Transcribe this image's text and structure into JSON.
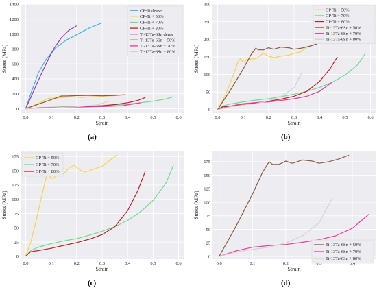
{
  "panel_labels": [
    "(a)",
    "(b)",
    "(c)",
    "(d)"
  ],
  "chart_data": [
    {
      "type": "line",
      "xlabel": "Strain",
      "ylabel": "Stress (MPa)",
      "xlim": [
        -0.02,
        0.62
      ],
      "ylim": [
        -60,
        1400
      ],
      "xticks": [
        0.0,
        0.1,
        0.2,
        0.3,
        0.4,
        0.5,
        0.6
      ],
      "yticks": [
        0,
        200,
        400,
        600,
        800,
        1000,
        1200,
        1400
      ],
      "legend_position": "top-right",
      "series": [
        {
          "name": "CP-Ti dense",
          "color": "#35b6e6",
          "x": [
            0,
            0.02,
            0.05,
            0.08,
            0.12,
            0.16,
            0.2,
            0.25,
            0.3
          ],
          "y": [
            0,
            200,
            480,
            660,
            820,
            920,
            990,
            1080,
            1150
          ]
        },
        {
          "name": "CP-Ti + 50%",
          "color": "#f5d547",
          "x": [
            0,
            0.05,
            0.09,
            0.12,
            0.18,
            0.22,
            0.26,
            0.3,
            0.35
          ],
          "y": [
            0,
            70,
            140,
            140,
            160,
            150,
            160,
            165,
            175
          ]
        },
        {
          "name": "CP-Ti + 70%",
          "color": "#6edc8c",
          "x": [
            0,
            0.1,
            0.2,
            0.3,
            0.4,
            0.45,
            0.5,
            0.55,
            0.58
          ],
          "y": [
            0,
            20,
            30,
            40,
            60,
            80,
            100,
            130,
            160
          ]
        },
        {
          "name": "CP-Ti + 80%",
          "color": "#c01e27",
          "x": [
            0,
            0.05,
            0.1,
            0.15,
            0.2,
            0.25,
            0.3,
            0.35,
            0.4,
            0.44,
            0.47
          ],
          "y": [
            0,
            10,
            15,
            20,
            25,
            30,
            40,
            55,
            80,
            110,
            150
          ]
        },
        {
          "name": "Ti-13Ta-6Sn dense",
          "color": "#a334b8",
          "x": [
            0,
            0.02,
            0.05,
            0.08,
            0.11,
            0.14,
            0.17,
            0.2
          ],
          "y": [
            0,
            150,
            380,
            600,
            800,
            950,
            1050,
            1110
          ]
        },
        {
          "name": "Ti-13Ta-6Sn + 50%",
          "color": "#8b5a3c",
          "x": [
            0,
            0.05,
            0.1,
            0.14,
            0.16,
            0.2,
            0.25,
            0.3,
            0.35,
            0.39
          ],
          "y": [
            0,
            60,
            120,
            170,
            170,
            175,
            178,
            172,
            178,
            187
          ]
        },
        {
          "name": "Ti-13Ta-6Sn + 70%",
          "color": "#f0399c",
          "x": [
            0,
            0.1,
            0.2,
            0.3,
            0.38,
            0.45
          ],
          "y": [
            0,
            15,
            22,
            28,
            40,
            78
          ]
        },
        {
          "name": "Ti-13Ta-6Sn + 80%",
          "color": "#d3d3d3",
          "x": [
            0,
            0.1,
            0.2,
            0.28,
            0.33
          ],
          "y": [
            0,
            12,
            25,
            50,
            105
          ]
        }
      ]
    },
    {
      "type": "line",
      "xlabel": "Strain",
      "ylabel": "Stress (MPa)",
      "xlim": [
        -0.02,
        0.62
      ],
      "ylim": [
        -10,
        300
      ],
      "xticks": [
        0.0,
        0.1,
        0.2,
        0.3,
        0.4,
        0.5,
        0.6
      ],
      "yticks": [
        0,
        50,
        100,
        150,
        200,
        250,
        300
      ],
      "legend_position": "top-right",
      "series": [
        {
          "name": "CP-Ti + 50%",
          "color": "#f5d547",
          "x": [
            0,
            0.03,
            0.06,
            0.08,
            0.09,
            0.1,
            0.12,
            0.15,
            0.18,
            0.2,
            0.22,
            0.25,
            0.28,
            0.3,
            0.33,
            0.35
          ],
          "y": [
            0,
            40,
            95,
            135,
            146,
            135,
            143,
            145,
            160,
            152,
            148,
            152,
            155,
            160,
            165,
            178
          ]
        },
        {
          "name": "CP-Ti + 70%",
          "color": "#6edc8c",
          "x": [
            0,
            0.02,
            0.05,
            0.1,
            0.15,
            0.2,
            0.25,
            0.3,
            0.35,
            0.4,
            0.45,
            0.5,
            0.55,
            0.58
          ],
          "y": [
            0,
            10,
            16,
            22,
            27,
            31,
            37,
            44,
            52,
            63,
            78,
            98,
            128,
            160
          ]
        },
        {
          "name": "CP-Ti + 80%",
          "color": "#c01e27",
          "x": [
            0,
            0.02,
            0.05,
            0.1,
            0.15,
            0.2,
            0.25,
            0.3,
            0.35,
            0.4,
            0.44,
            0.47
          ],
          "y": [
            0,
            8,
            10,
            14,
            19,
            24,
            30,
            38,
            52,
            80,
            115,
            150
          ]
        },
        {
          "name": "Ti-13Ta-6Sn + 50%",
          "color": "#8b5a3c",
          "x": [
            0,
            0.05,
            0.1,
            0.13,
            0.15,
            0.16,
            0.18,
            0.2,
            0.22,
            0.25,
            0.28,
            0.3,
            0.33,
            0.36,
            0.39
          ],
          "y": [
            0,
            55,
            115,
            155,
            175,
            170,
            170,
            176,
            172,
            178,
            176,
            172,
            175,
            180,
            187
          ]
        },
        {
          "name": "Ti-13Ta-6Sn + 70%",
          "color": "#f0399c",
          "x": [
            0,
            0.05,
            0.1,
            0.15,
            0.2,
            0.25,
            0.3,
            0.35,
            0.4,
            0.45
          ],
          "y": [
            0,
            10,
            17,
            20,
            22,
            26,
            31,
            38,
            52,
            78
          ]
        },
        {
          "name": "Ti-13Ta-6Sn + 80%",
          "color": "#d3d3d3",
          "x": [
            0,
            0.05,
            0.1,
            0.15,
            0.2,
            0.25,
            0.3,
            0.33
          ],
          "y": [
            0,
            8,
            13,
            17,
            25,
            38,
            62,
            105
          ]
        }
      ]
    },
    {
      "type": "line",
      "xlabel": "Strain",
      "ylabel": "Stress (MPa)",
      "xlim": [
        -0.02,
        0.62
      ],
      "ylim": [
        -5,
        185
      ],
      "xticks": [
        0.0,
        0.1,
        0.2,
        0.3,
        0.4,
        0.5,
        0.6
      ],
      "yticks": [
        0,
        25,
        50,
        75,
        100,
        125,
        150,
        175
      ],
      "legend_position": "top-left",
      "series": [
        {
          "name": "CP-Ti + 50%",
          "color": "#f5d547",
          "x": [
            0,
            0.02,
            0.04,
            0.06,
            0.08,
            0.09,
            0.1,
            0.11,
            0.13,
            0.15,
            0.17,
            0.19,
            0.21,
            0.23,
            0.25,
            0.28,
            0.3,
            0.32,
            0.35,
            0.36
          ],
          "y": [
            0,
            25,
            60,
            100,
            138,
            146,
            136,
            138,
            143,
            145,
            155,
            160,
            152,
            148,
            150,
            155,
            158,
            165,
            175,
            178
          ]
        },
        {
          "name": "CP-Ti + 70%",
          "color": "#6edc8c",
          "x": [
            0,
            0.02,
            0.05,
            0.1,
            0.15,
            0.2,
            0.25,
            0.3,
            0.35,
            0.4,
            0.45,
            0.5,
            0.55,
            0.58
          ],
          "y": [
            0,
            10,
            16,
            22,
            27,
            31,
            37,
            44,
            52,
            63,
            78,
            98,
            128,
            160
          ]
        },
        {
          "name": "CP-Ti + 80%",
          "color": "#c01e27",
          "x": [
            0,
            0.02,
            0.05,
            0.1,
            0.15,
            0.2,
            0.25,
            0.3,
            0.35,
            0.4,
            0.44,
            0.47
          ],
          "y": [
            0,
            8,
            10,
            14,
            19,
            24,
            30,
            38,
            52,
            80,
            115,
            150
          ]
        }
      ]
    },
    {
      "type": "line",
      "xlabel": "Strain",
      "ylabel": "Stress (MPa)",
      "xlim": [
        -0.02,
        0.47
      ],
      "ylim": [
        -5,
        195
      ],
      "xticks": [
        0.0,
        0.1,
        0.2,
        0.3,
        0.4
      ],
      "yticks": [
        0,
        25,
        50,
        75,
        100,
        125,
        150,
        175
      ],
      "legend_position": "bottom-right",
      "series": [
        {
          "name": "Ti-13Ta-6Sn + 50%",
          "color": "#8b5a3c",
          "x": [
            0,
            0.05,
            0.1,
            0.13,
            0.15,
            0.16,
            0.18,
            0.2,
            0.22,
            0.25,
            0.28,
            0.3,
            0.33,
            0.36,
            0.39
          ],
          "y": [
            0,
            55,
            115,
            155,
            175,
            170,
            170,
            176,
            172,
            178,
            176,
            172,
            175,
            180,
            187
          ]
        },
        {
          "name": "Ti-13Ta-6Sn + 70%",
          "color": "#f0399c",
          "x": [
            0,
            0.05,
            0.1,
            0.15,
            0.2,
            0.25,
            0.3,
            0.35,
            0.4,
            0.45
          ],
          "y": [
            0,
            10,
            17,
            20,
            22,
            26,
            31,
            38,
            52,
            78
          ]
        },
        {
          "name": "Ti-13Ta-6Sn + 80%",
          "color": "#d3d3d3",
          "x": [
            0,
            0.05,
            0.1,
            0.15,
            0.2,
            0.25,
            0.3,
            0.34
          ],
          "y": [
            0,
            8,
            13,
            17,
            25,
            38,
            62,
            108
          ]
        }
      ]
    }
  ]
}
